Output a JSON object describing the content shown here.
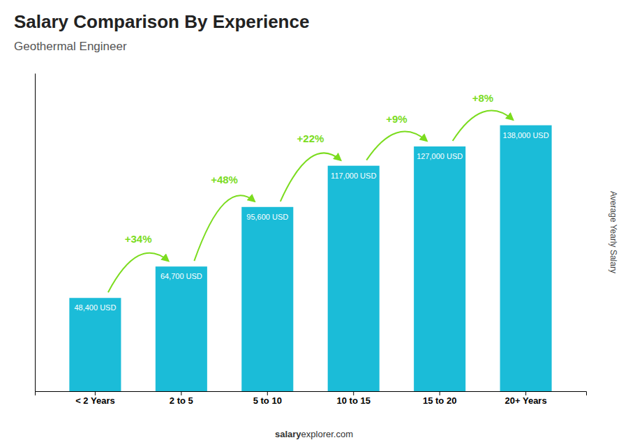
{
  "chart_data": {
    "type": "bar",
    "title": "Salary Comparison By Experience",
    "subtitle": "Geothermal Engineer",
    "categories": [
      "< 2 Years",
      "2 to 5",
      "5 to 10",
      "10 to 15",
      "15 to 20",
      "20+ Years"
    ],
    "values": [
      48400,
      64700,
      95600,
      117000,
      127000,
      138000
    ],
    "value_labels": [
      "48,400 USD",
      "64,700 USD",
      "95,600 USD",
      "117,000 USD",
      "127,000 USD",
      "138,000 USD"
    ],
    "data_labels": true,
    "color": "#1bbcd8",
    "ylabel": "Average Yearly Salary",
    "ylim": [
      0,
      165000
    ],
    "tick_labels": "x",
    "grid": false,
    "annotations": [
      {
        "text": "+34%",
        "color": "#7bdc1e"
      },
      {
        "text": "+48%",
        "color": "#7bdc1e"
      },
      {
        "text": "+22%",
        "color": "#7bdc1e"
      },
      {
        "text": "+9%",
        "color": "#7bdc1e"
      },
      {
        "text": "+8%",
        "color": "#7bdc1e"
      }
    ],
    "footer": [
      "salary",
      "explorer.com"
    ]
  }
}
